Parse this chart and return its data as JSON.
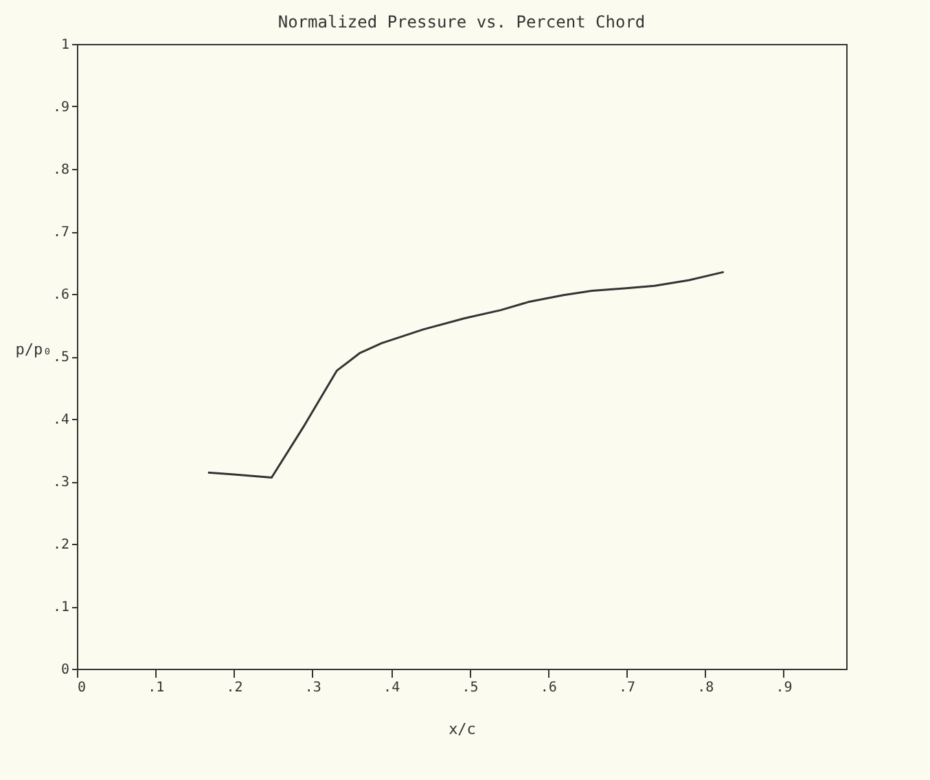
{
  "chart_data": {
    "type": "line",
    "title": "Normalized Pressure vs. Percent Chord",
    "xlabel": "x/c",
    "ylabel": "p/p₀",
    "x": [
      0.167,
      0.2,
      0.248,
      0.29,
      0.331,
      0.36,
      0.388,
      0.441,
      0.494,
      0.54,
      0.575,
      0.62,
      0.656,
      0.7,
      0.736,
      0.78,
      0.824
    ],
    "series": [
      {
        "color": "#333333",
        "values": [
          0.314,
          0.311,
          0.306,
          0.39,
          0.477,
          0.505,
          0.521,
          0.543,
          0.561,
          0.574,
          0.587,
          0.598,
          0.605,
          0.609,
          0.613,
          0.622,
          0.635
        ]
      }
    ],
    "xlim": [
      0,
      0.98
    ],
    "ylim": [
      0,
      1
    ],
    "xticks": [
      0,
      {
        "value": 0.1,
        "label": ".1"
      },
      {
        "value": 0.2,
        "label": ".2"
      },
      {
        "value": 0.3,
        "label": ".3"
      },
      {
        "value": 0.4,
        "label": ".4"
      },
      {
        "value": 0.5,
        "label": ".5"
      },
      {
        "value": 0.6,
        "label": ".6"
      },
      {
        "value": 0.7,
        "label": ".7"
      },
      {
        "value": 0.8,
        "label": ".8"
      },
      {
        "value": 0.9,
        "label": ".9"
      }
    ],
    "yticks": [
      0,
      {
        "value": 0.1,
        "label": ".1"
      },
      {
        "value": 0.2,
        "label": ".2"
      },
      {
        "value": 0.3,
        "label": ".3"
      },
      {
        "value": 0.4,
        "label": ".4"
      },
      {
        "value": 0.5,
        "label": ".5"
      },
      {
        "value": 0.6,
        "label": ".6"
      },
      {
        "value": 0.7,
        "label": ".7"
      },
      {
        "value": 0.8,
        "label": ".8"
      },
      {
        "value": 0.9,
        "label": ".9"
      },
      1
    ],
    "grid": false,
    "legend": false,
    "marker": "none",
    "line_style": "solid"
  }
}
